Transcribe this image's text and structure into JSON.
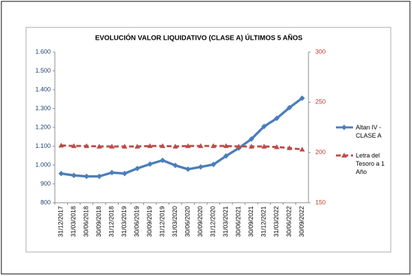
{
  "chart_data": {
    "type": "line",
    "title": "EVOLUCIÓN VALOR LIQUIDATIVO (CLASE A) ÚLTIMOS 5 AÑOS",
    "categories": [
      "31/12/2017",
      "31/03/2018",
      "30/06/2018",
      "30/09/2018",
      "31/12/2018",
      "31/03/2019",
      "30/06/2019",
      "30/09/2019",
      "31/12/2019",
      "31/03/2020",
      "30/06/2020",
      "30/09/2020",
      "31/12/2020",
      "31/03/2021",
      "30/06/2021",
      "30/09/2021",
      "31/12/2021",
      "31/03/2022",
      "30/06/2022",
      "30/09/2022"
    ],
    "series": [
      {
        "name": "Altan IV - CLASE A",
        "color": "#4a7ebb",
        "marker": "diamond",
        "values": [
          955,
          945,
          940,
          940,
          960,
          955,
          982,
          1005,
          1025,
          998,
          978,
          990,
          1003,
          1048,
          1090,
          1138,
          1205,
          1248,
          1305,
          1355
        ]
      },
      {
        "name": "Letra del Tesoro a 1 Año",
        "color": "#be4b48",
        "marker": "triangle",
        "dashed": true,
        "axis": "y2",
        "values": [
          207,
          206.5,
          206.5,
          206,
          206,
          206,
          206,
          206.5,
          206.5,
          206,
          206.5,
          206.5,
          206.5,
          206.5,
          206,
          206,
          206,
          205.5,
          204.5,
          203
        ]
      }
    ],
    "ylim": [
      800,
      1600
    ],
    "yticks": [
      800,
      900,
      {
        "value": 1000,
        "label": "1.000"
      },
      {
        "value": 1100,
        "label": "1.100"
      },
      {
        "value": 1200,
        "label": "1.200"
      },
      {
        "value": 1300,
        "label": "1.300"
      },
      {
        "value": 1400,
        "label": "1.400"
      },
      {
        "value": 1500,
        "label": "1.500"
      },
      {
        "value": 1600,
        "label": "1.600"
      }
    ],
    "y2lim": [
      150,
      300
    ],
    "y2ticks": [
      150,
      200,
      250,
      300
    ],
    "grid": false,
    "legend": "right"
  }
}
